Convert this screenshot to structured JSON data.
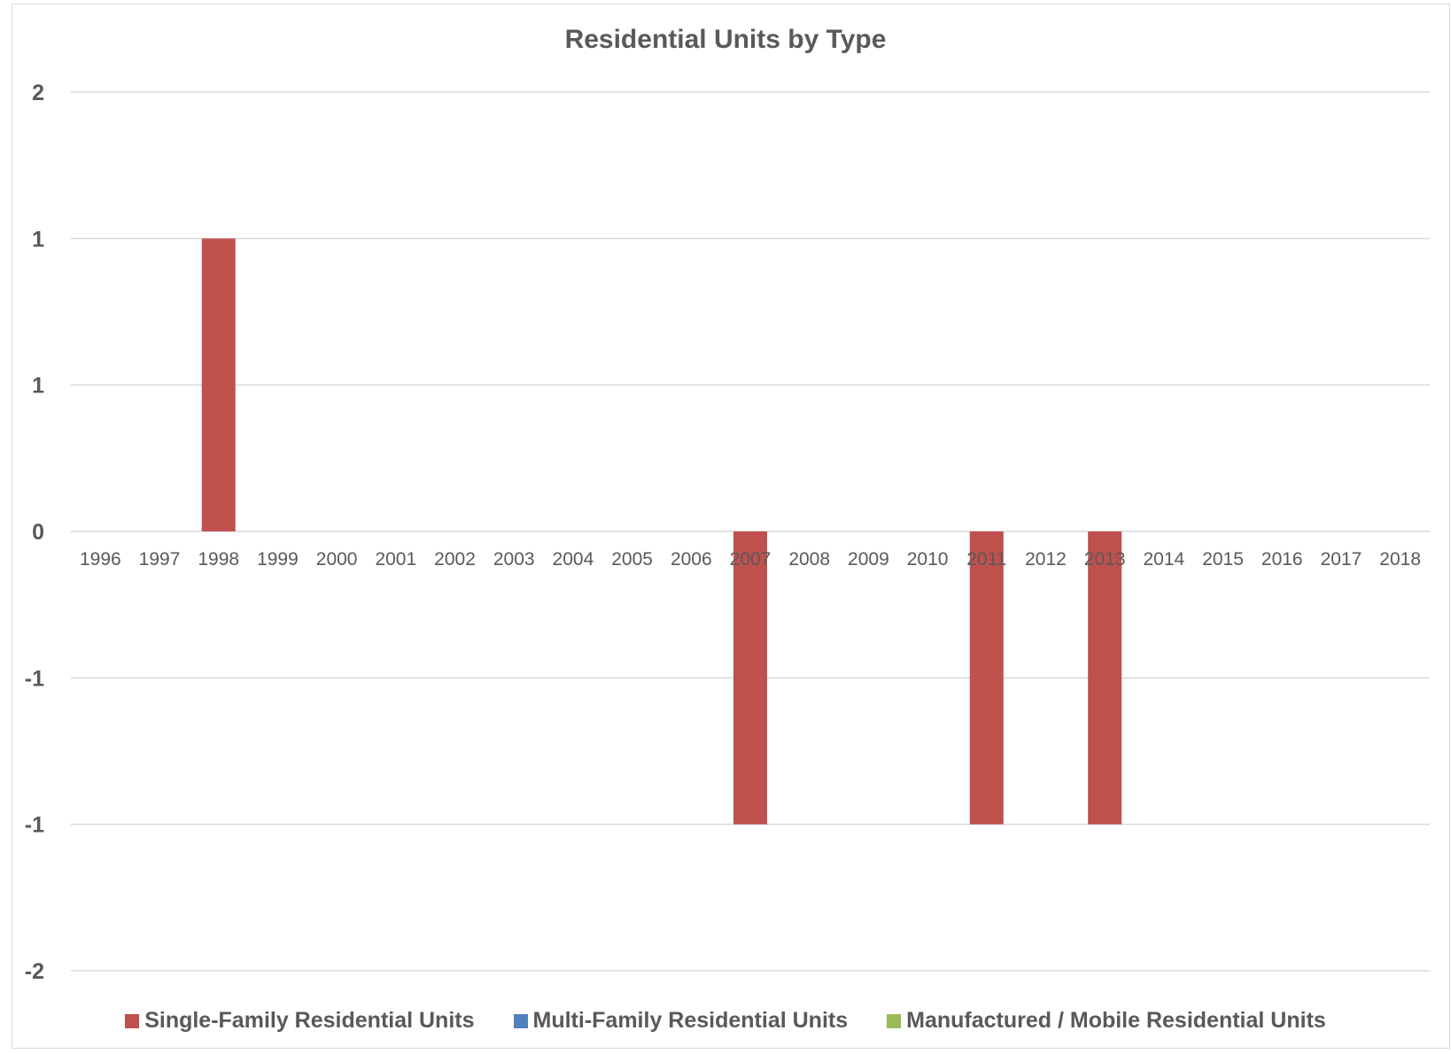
{
  "chart_data": {
    "type": "bar",
    "title": "Residential Units by Type",
    "categories": [
      "1996",
      "1997",
      "1998",
      "1999",
      "2000",
      "2001",
      "2002",
      "2003",
      "2004",
      "2005",
      "2006",
      "2007",
      "2008",
      "2009",
      "2010",
      "2011",
      "2012",
      "2013",
      "2014",
      "2015",
      "2016",
      "2017",
      "2018"
    ],
    "y_ticks": [
      {
        "value": 1.5,
        "label": "2"
      },
      {
        "value": 1.0,
        "label": "1"
      },
      {
        "value": 0.5,
        "label": "1"
      },
      {
        "value": 0.0,
        "label": "0"
      },
      {
        "value": -0.5,
        "label": "-1"
      },
      {
        "value": -1.0,
        "label": "-1"
      },
      {
        "value": -1.5,
        "label": "-2"
      }
    ],
    "ylim": [
      -1.5,
      1.5
    ],
    "grid": true,
    "legend_position": "bottom",
    "series": [
      {
        "name": "Single-Family Residential Units",
        "color": "#c0504d",
        "values": [
          0,
          0,
          1,
          0,
          0,
          0,
          0,
          0,
          0,
          0,
          0,
          -1,
          0,
          0,
          0,
          -1,
          0,
          -1,
          0,
          0,
          0,
          0,
          0
        ]
      },
      {
        "name": "Multi-Family Residential Units",
        "color": "#4f81bd",
        "values": [
          0,
          0,
          0,
          0,
          0,
          0,
          0,
          0,
          0,
          0,
          0,
          0,
          0,
          0,
          0,
          0,
          0,
          0,
          0,
          0,
          0,
          0,
          0
        ]
      },
      {
        "name": "Manufactured / Mobile Residential  Units",
        "color": "#9bbb59",
        "values": [
          0,
          0,
          0,
          0,
          0,
          0,
          0,
          0,
          0,
          0,
          0,
          0,
          0,
          0,
          0,
          0,
          0,
          0,
          0,
          0,
          0,
          0,
          0
        ]
      }
    ]
  }
}
